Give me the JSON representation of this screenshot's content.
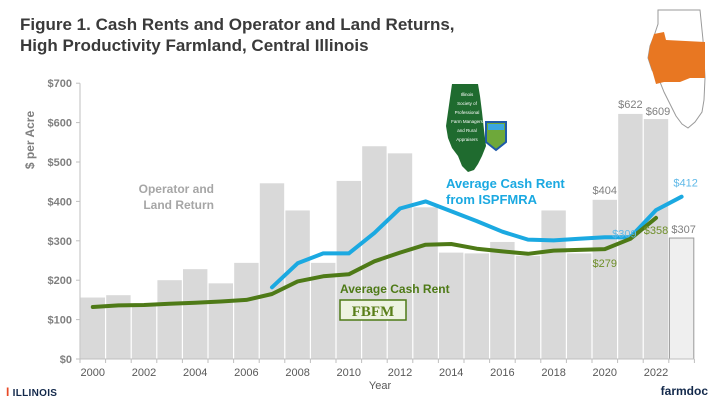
{
  "title_line1": "Figure 1. Cash Rents and Operator and Land Returns,",
  "title_line2": "High Productivity Farmland, Central Illinois",
  "footer": {
    "left_logo": "ILLINOIS",
    "right_logo": "farmdoc"
  },
  "logos": {
    "ispfmra": "Illinois Society of Professional Farm Managers and Rural Appraisers",
    "fbfm": "FBFM"
  },
  "colors": {
    "bars": "#d9d9d9",
    "bar_last": "#efefef",
    "ispfmra": "#1ba9e1",
    "fbfm": "#4e7a17",
    "map_region": "#e87722"
  },
  "chart_data": {
    "type": "bar",
    "title": "Figure 1. Cash Rents and Operator and Land Returns, High Productivity Farmland, Central Illinois",
    "xlabel": "Year",
    "ylabel": "$ per Acre",
    "ylim": [
      0,
      700
    ],
    "yticks": [
      "$0",
      "$100",
      "$200",
      "$300",
      "$400",
      "$500",
      "$600",
      "$700"
    ],
    "xticks": [
      "2000",
      "2002",
      "2004",
      "2006",
      "2008",
      "2010",
      "2012",
      "2014",
      "2016",
      "2018",
      "2020",
      "2022"
    ],
    "categories": [
      2000,
      2001,
      2002,
      2003,
      2004,
      2005,
      2006,
      2007,
      2008,
      2009,
      2010,
      2011,
      2012,
      2013,
      2014,
      2015,
      2016,
      2017,
      2018,
      2019,
      2020,
      2021,
      2022,
      2023
    ],
    "series": [
      {
        "name": "Operator and Land Return",
        "type": "bar",
        "values": [
          156,
          162,
          135,
          200,
          228,
          192,
          244,
          446,
          377,
          244,
          452,
          540,
          522,
          385,
          270,
          268,
          297,
          262,
          377,
          268,
          404,
          622,
          609,
          307
        ]
      },
      {
        "name": "Average Cash Rent from ISPFMRA",
        "type": "line",
        "values": [
          null,
          null,
          null,
          null,
          null,
          null,
          null,
          182,
          243,
          268,
          268,
          320,
          382,
          400,
          375,
          350,
          323,
          303,
          301,
          305,
          309,
          309,
          378,
          412
        ]
      },
      {
        "name": "Average Cash Rent (FBFM)",
        "type": "line",
        "values": [
          132,
          136,
          137,
          140,
          143,
          146,
          150,
          165,
          197,
          210,
          215,
          248,
          270,
          290,
          292,
          280,
          273,
          267,
          275,
          277,
          279,
          305,
          358,
          null
        ]
      }
    ],
    "annotations": [
      {
        "text": "$404",
        "year": 2020
      },
      {
        "text": "$622",
        "year": 2021
      },
      {
        "text": "$609",
        "year": 2022
      },
      {
        "text": "$307",
        "year": 2023
      },
      {
        "text": "$309",
        "year": 2021,
        "series": "ISPFMRA"
      },
      {
        "text": "$412",
        "year": 2023,
        "series": "ISPFMRA"
      },
      {
        "text": "$279",
        "year": 2020,
        "series": "FBFM"
      },
      {
        "text": "$358",
        "year": 2022,
        "series": "FBFM"
      }
    ],
    "labels": {
      "bars": [
        "Operator and",
        "Land Return"
      ],
      "ispfmra": [
        "Average Cash Rent",
        "from ISPFMRA"
      ],
      "fbfm": "Average Cash Rent"
    },
    "grid": false
  }
}
